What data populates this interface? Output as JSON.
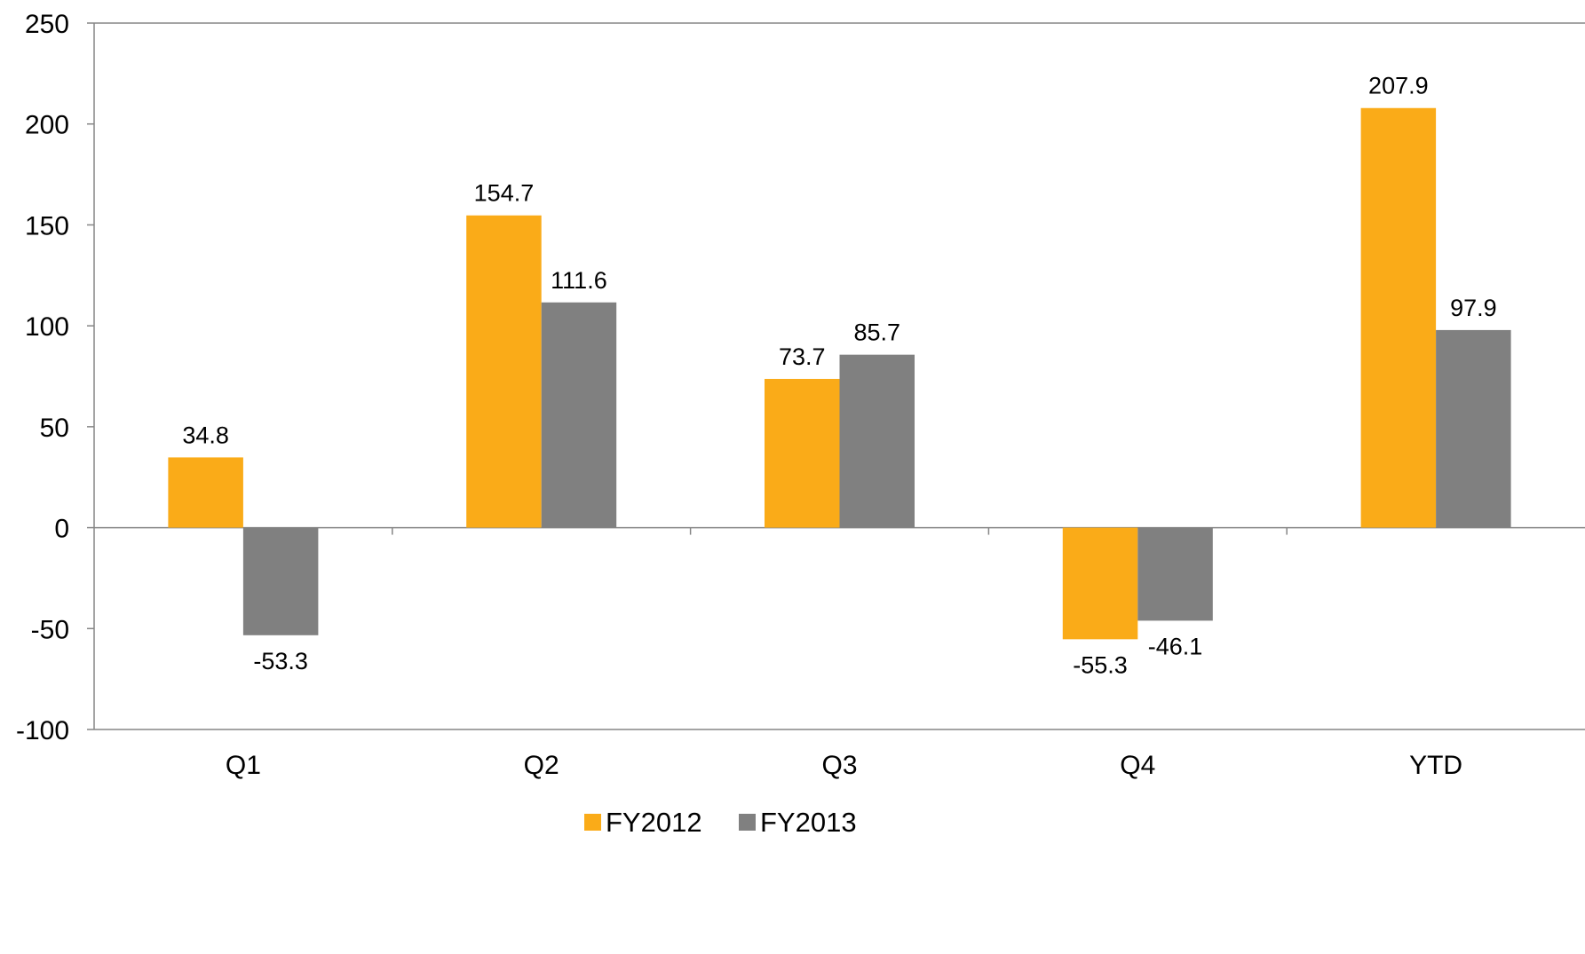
{
  "chart_data": {
    "type": "bar",
    "categories": [
      "Q1",
      "Q2",
      "Q3",
      "Q4",
      "YTD"
    ],
    "series": [
      {
        "name": "FY2012",
        "color": "#FAAB18",
        "values": [
          34.8,
          154.7,
          73.7,
          -55.3,
          207.9
        ],
        "labels": [
          "34.8",
          "154.7",
          "73.7",
          "-55.3",
          "207.9"
        ]
      },
      {
        "name": "FY2013",
        "color": "#808080",
        "values": [
          -53.3,
          111.6,
          85.7,
          -46.1,
          97.9
        ],
        "labels": [
          "-53.3",
          "111.6",
          "85.7",
          "-46.1",
          "97.9"
        ]
      }
    ],
    "ylim": [
      -100,
      250
    ],
    "yticks": [
      -100,
      -50,
      0,
      50,
      100,
      150,
      200,
      250
    ],
    "ytick_labels": [
      "-100",
      "-50",
      "0",
      "50",
      "100",
      "150",
      "200",
      "250"
    ],
    "title": "",
    "xlabel": "",
    "ylabel": "",
    "grid": false,
    "legend_position": "bottom-center",
    "axis_color": "#868686"
  }
}
